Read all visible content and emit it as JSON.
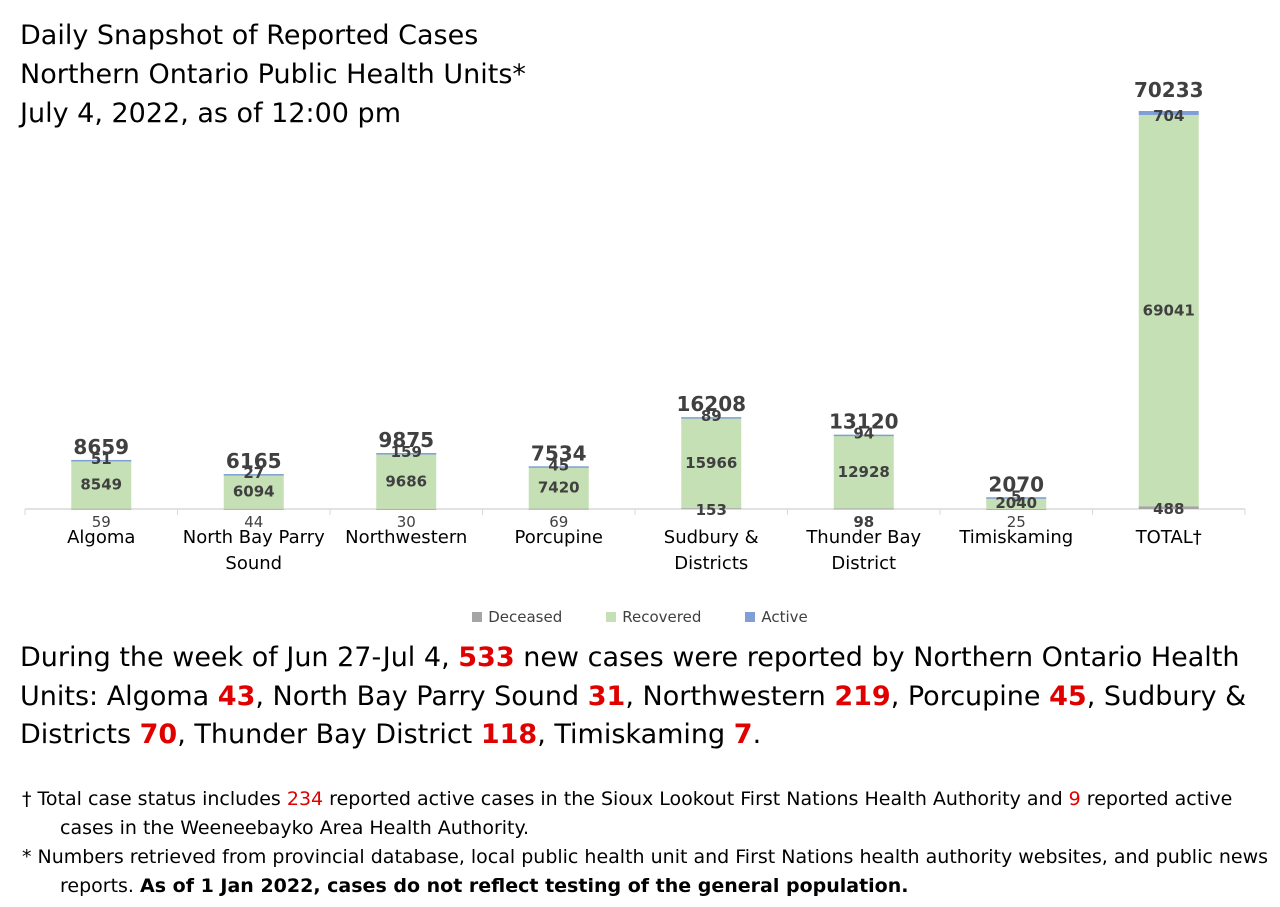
{
  "title": {
    "line1": "Daily Snapshot of Reported Cases",
    "line2": "Northern Ontario Public Health Units*",
    "line3": "July 4, 2022, as of 12:00 pm"
  },
  "chart_data": {
    "type": "bar",
    "stacked": true,
    "categories": [
      [
        "Algoma"
      ],
      [
        "North Bay Parry",
        "Sound"
      ],
      [
        "Northwestern"
      ],
      [
        "Porcupine"
      ],
      [
        "Sudbury &",
        "Districts"
      ],
      [
        "Thunder Bay",
        "District"
      ],
      [
        "Timiskaming"
      ],
      [
        "TOTAL†"
      ]
    ],
    "series": [
      {
        "name": "Deceased",
        "color": "#a5a5a5",
        "values": [
          59,
          44,
          30,
          69,
          153,
          98,
          25,
          488
        ]
      },
      {
        "name": "Recovered",
        "color": "#c5e0b4",
        "values": [
          8549,
          6094,
          9686,
          7420,
          15966,
          12928,
          2040,
          69041
        ]
      },
      {
        "name": "Active",
        "color": "#7f9fd6",
        "values": [
          51,
          27,
          159,
          45,
          89,
          94,
          5,
          704
        ]
      }
    ],
    "totals": [
      8659,
      6165,
      9875,
      7534,
      16208,
      13120,
      2070,
      70233
    ],
    "ylim": [
      0,
      72000
    ],
    "grid": false,
    "legend_position": "bottom"
  },
  "summary": {
    "t1": "During the week of Jun 27-Jul 4, ",
    "n_total": "533",
    "t2": " new cases were reported by Northern Ontario Health Units: Algoma ",
    "n_algoma": "43",
    "t3": ", North Bay Parry Sound ",
    "n_nbps": "31",
    "t4": ", Northwestern ",
    "n_nw": "219",
    "t5": ", Porcupine ",
    "n_porc": "45",
    "t6": ", Sudbury & Districts ",
    "n_sud": "70",
    "t7": ", Thunder Bay District ",
    "n_tb": "118",
    "t8": ", Timiskaming ",
    "n_tim": "7",
    "t9": "."
  },
  "footnotes": {
    "dagger": {
      "t1": "† Total case status includes ",
      "n1": "234",
      "t2": " reported active cases in the Sioux Lookout First Nations Health Authority and ",
      "n2": "9",
      "t3": " reported active cases in the Weeneebayko Area Health Authority."
    },
    "star": {
      "t1": "* Numbers retrieved from provincial database, local public health unit and First Nations health authority websites, and public news reports. ",
      "bold": "As of 1 Jan 2022, cases do not reflect testing of the general population."
    }
  }
}
